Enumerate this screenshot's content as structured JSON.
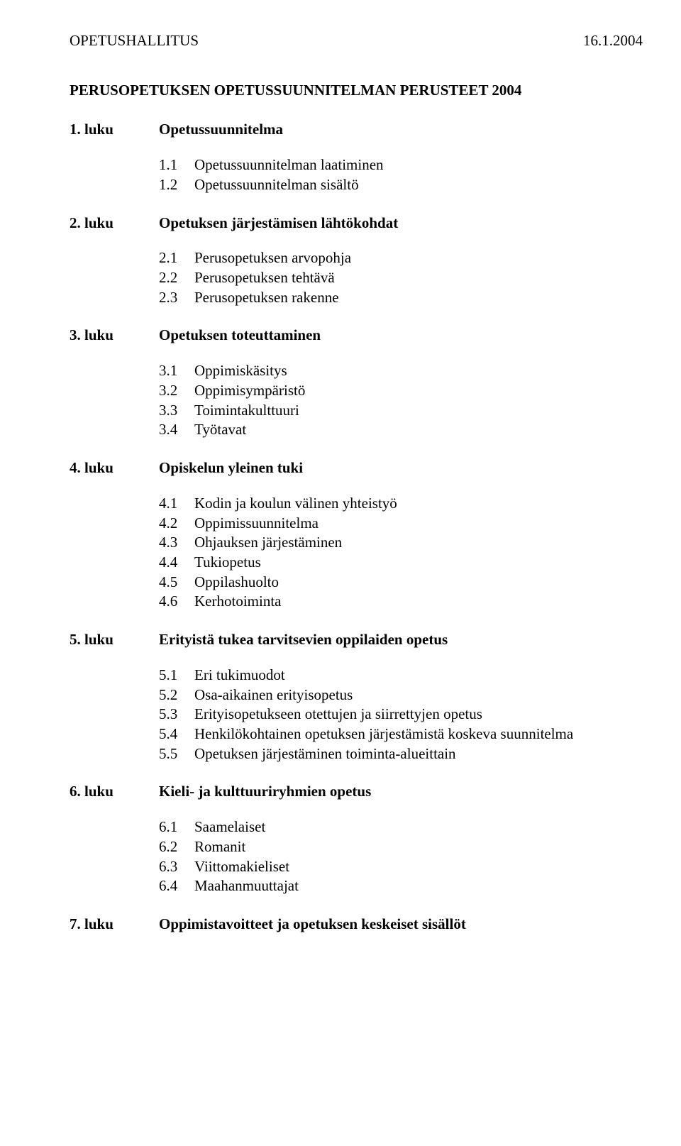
{
  "header": {
    "org": "OPETUSHALLITUS",
    "date": "16.1.2004"
  },
  "title": "PERUSOPETUKSEN OPETUSSUUNNITELMAN PERUSTEET 2004",
  "chapters": [
    {
      "label": "1. luku",
      "title": "Opetussuunnitelma",
      "items": [
        {
          "num": "1.1",
          "text": "Opetussuunnitelman laatiminen"
        },
        {
          "num": "1.2",
          "text": "Opetussuunnitelman sisältö"
        }
      ]
    },
    {
      "label": "2. luku",
      "title": "Opetuksen järjestämisen lähtökohdat",
      "items": [
        {
          "num": "2.1",
          "text": "Perusopetuksen arvopohja"
        },
        {
          "num": "2.2",
          "text": "Perusopetuksen tehtävä"
        },
        {
          "num": "2.3",
          "text": "Perusopetuksen rakenne"
        }
      ]
    },
    {
      "label": "3. luku",
      "title": "Opetuksen toteuttaminen",
      "items": [
        {
          "num": "3.1",
          "text": "Oppimiskäsitys"
        },
        {
          "num": "3.2",
          "text": "Oppimisympäristö"
        },
        {
          "num": "3.3",
          "text": "Toimintakulttuuri"
        },
        {
          "num": "3.4",
          "text": "Työtavat"
        }
      ]
    },
    {
      "label": "4. luku",
      "title": "Opiskelun yleinen tuki",
      "items": [
        {
          "num": "4.1",
          "text": "Kodin ja koulun välinen yhteistyö"
        },
        {
          "num": "4.2",
          "text": "Oppimissuunnitelma"
        },
        {
          "num": "4.3",
          "text": "Ohjauksen järjestäminen"
        },
        {
          "num": "4.4",
          "text": "Tukiopetus"
        },
        {
          "num": "4.5",
          "text": "Oppilashuolto"
        },
        {
          "num": "4.6",
          "text": "Kerhotoiminta"
        }
      ]
    },
    {
      "label": "5. luku",
      "title": "Erityistä tukea tarvitsevien oppilaiden opetus",
      "items": [
        {
          "num": "5.1",
          "text": "Eri tukimuodot"
        },
        {
          "num": "5.2",
          "text": "Osa-aikainen erityisopetus"
        },
        {
          "num": "5.3",
          "text": "Erityisopetukseen otettujen ja siirrettyjen opetus"
        },
        {
          "num": "5.4",
          "text": "Henkilökohtainen opetuksen järjestämistä koskeva suunnitelma"
        },
        {
          "num": "5.5",
          "text": "Opetuksen järjestäminen toiminta-alueittain"
        }
      ]
    },
    {
      "label": "6. luku",
      "title": "Kieli- ja kulttuuriryhmien opetus",
      "items": [
        {
          "num": "6.1",
          "text": "Saamelaiset"
        },
        {
          "num": "6.2",
          "text": "Romanit"
        },
        {
          "num": "6.3",
          "text": "Viittomakieliset"
        },
        {
          "num": "6.4",
          "text": "Maahanmuuttajat"
        }
      ]
    },
    {
      "label": "7. luku",
      "title": "Oppimistavoitteet ja opetuksen keskeiset sisällöt",
      "items": []
    }
  ]
}
